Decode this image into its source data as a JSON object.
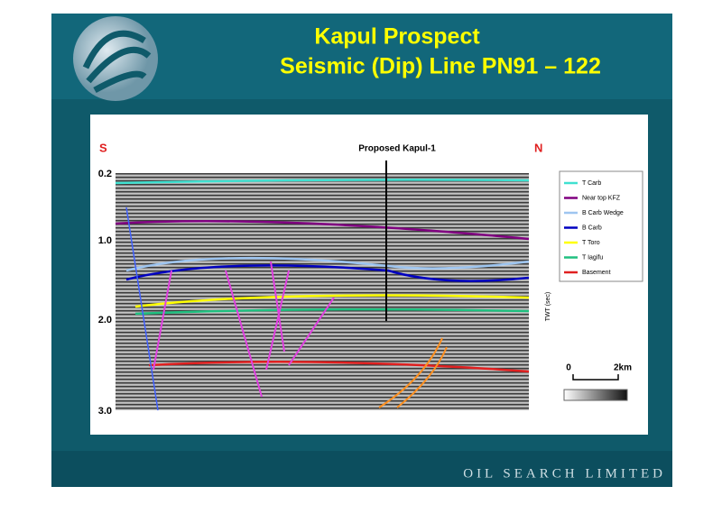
{
  "header": {
    "title_line1": "Kapul Prospect",
    "title_line2": "Seismic (Dip) Line PN91 – 122"
  },
  "section": {
    "south": "S",
    "north": "N",
    "well": "Proposed Kapul-1",
    "axis_title": "TWT (sec)",
    "axis_labels": [
      "0.2",
      "1.0",
      "2.0",
      "3.0"
    ]
  },
  "legend": {
    "items": [
      "T Carb",
      "Near top KFZ",
      "B Carb Wedge",
      "B Carb",
      "T Toro",
      "T Iagifu",
      "Basement"
    ]
  },
  "scale": {
    "start": "0",
    "end": "2km"
  },
  "footer": {
    "company": "OIL SEARCH LIMITED"
  }
}
